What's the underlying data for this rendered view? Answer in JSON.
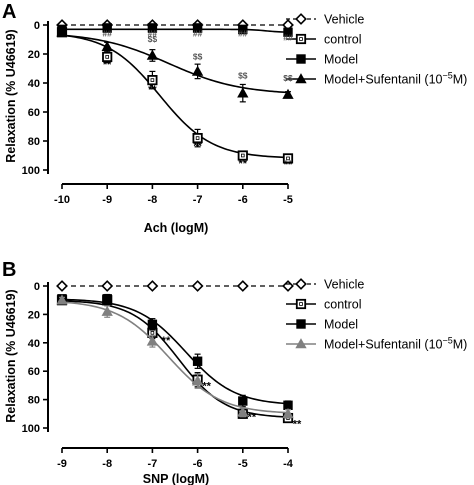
{
  "figure": {
    "panels": [
      "A",
      "B"
    ]
  },
  "chart_data": [
    {
      "type": "line",
      "panel": "A",
      "xlabel": "Ach (logM)",
      "ylabel": "Relaxation (% U46619)",
      "x": [
        -10,
        -9,
        -8,
        -7,
        -6,
        -5
      ],
      "xticks": [
        "-10",
        "-9",
        "-8",
        "-7",
        "-6",
        "-5"
      ],
      "yticks": [
        "0",
        "20",
        "40",
        "60",
        "80",
        "100"
      ],
      "xlim": [
        -10,
        -5
      ],
      "ylim": [
        0,
        100
      ],
      "y_inverted": true,
      "grid": false,
      "legend_position": "right",
      "series": [
        {
          "name": "Vehicle",
          "marker": "diamond-open",
          "line": "dashed",
          "color": "#000000",
          "values": [
            0,
            0,
            0,
            0,
            0,
            0
          ]
        },
        {
          "name": "control",
          "marker": "square-open",
          "line": "solid",
          "color": "#000000",
          "values": [
            5,
            22,
            38,
            78,
            90,
            92
          ],
          "errors": [
            2,
            4,
            6,
            6,
            3,
            2
          ]
        },
        {
          "name": "Model",
          "marker": "square-filled",
          "line": "solid",
          "color": "#000000",
          "values": [
            3,
            2,
            2,
            2,
            3,
            5
          ],
          "errors": [
            1,
            1,
            1,
            1,
            1,
            1
          ]
        },
        {
          "name": "Model+Sufentanil (10",
          "name_superscript": "−5",
          "name_suffix": "M)",
          "marker": "triangle-filled",
          "line": "solid",
          "color": "#000000",
          "values": [
            5,
            15,
            21,
            32,
            47,
            48
          ],
          "errors": [
            2,
            3,
            4,
            5,
            6,
            2
          ]
        }
      ],
      "annotations": [
        {
          "text": "**",
          "x": -9,
          "y": 27,
          "color": "#000000"
        },
        {
          "text": "**",
          "x": -8,
          "y": 44,
          "color": "#000000"
        },
        {
          "text": "**",
          "x": -7,
          "y": 83,
          "color": "#000000"
        },
        {
          "text": "**",
          "x": -6,
          "y": 95,
          "color": "#000000"
        },
        {
          "text": "**",
          "x": -5,
          "y": 96,
          "color": "#000000"
        },
        {
          "text": "##",
          "x": -9,
          "y": 5,
          "color": "#555555"
        },
        {
          "text": "##",
          "x": -8,
          "y": 5,
          "color": "#555555"
        },
        {
          "text": "##",
          "x": -7,
          "y": 5,
          "color": "#555555"
        },
        {
          "text": "##",
          "x": -6,
          "y": 5,
          "color": "#555555"
        },
        {
          "text": "##",
          "x": -5,
          "y": 8,
          "color": "#555555"
        },
        {
          "text": "$$",
          "x": -8,
          "y": 9,
          "color": "#555555"
        },
        {
          "text": "$$",
          "x": -7,
          "y": 21,
          "color": "#555555"
        },
        {
          "text": "$$",
          "x": -6,
          "y": 34,
          "color": "#555555"
        },
        {
          "text": "$$",
          "x": -5,
          "y": 36,
          "color": "#555555"
        }
      ]
    },
    {
      "type": "line",
      "panel": "B",
      "xlabel": "SNP (logM)",
      "ylabel": "Relaxation (% U46619)",
      "x": [
        -9,
        -8,
        -7,
        -6,
        -5,
        -4
      ],
      "xticks": [
        "-9",
        "-8",
        "-7",
        "-6",
        "-5",
        "-4"
      ],
      "yticks": [
        "0",
        "20",
        "40",
        "60",
        "80",
        "100"
      ],
      "xlim": [
        -9,
        -4
      ],
      "ylim": [
        0,
        100
      ],
      "y_inverted": true,
      "grid": false,
      "legend_position": "right",
      "series": [
        {
          "name": "Vehicle",
          "marker": "diamond-open",
          "line": "dashed",
          "color": "#000000",
          "values": [
            0,
            0,
            0,
            0,
            0,
            0
          ]
        },
        {
          "name": "control",
          "marker": "square-open",
          "line": "solid",
          "color": "#000000",
          "values": [
            10,
            10,
            33,
            66,
            90,
            93
          ],
          "errors": [
            2,
            3,
            4,
            5,
            3,
            2
          ]
        },
        {
          "name": "Model",
          "marker": "square-filled",
          "line": "solid",
          "color": "#000000",
          "values": [
            9,
            9,
            27,
            53,
            81,
            84
          ],
          "errors": [
            2,
            3,
            4,
            5,
            4,
            3
          ]
        },
        {
          "name": "Model+Sufentanil (10",
          "name_superscript": "−5",
          "name_suffix": "M)",
          "marker": "triangle-filled",
          "line": "solid",
          "color": "#808080",
          "values": [
            10,
            18,
            39,
            67,
            89,
            90
          ],
          "errors": [
            2,
            4,
            4,
            5,
            3,
            3
          ]
        }
      ],
      "annotations": [
        {
          "text": "**",
          "x": -6.7,
          "y": 38,
          "color": "#000000"
        },
        {
          "text": "**",
          "x": -5.8,
          "y": 70,
          "color": "#000000"
        },
        {
          "text": "**",
          "x": -4.8,
          "y": 92,
          "color": "#000000"
        },
        {
          "text": "**",
          "x": -3.8,
          "y": 97,
          "color": "#000000"
        }
      ]
    }
  ]
}
